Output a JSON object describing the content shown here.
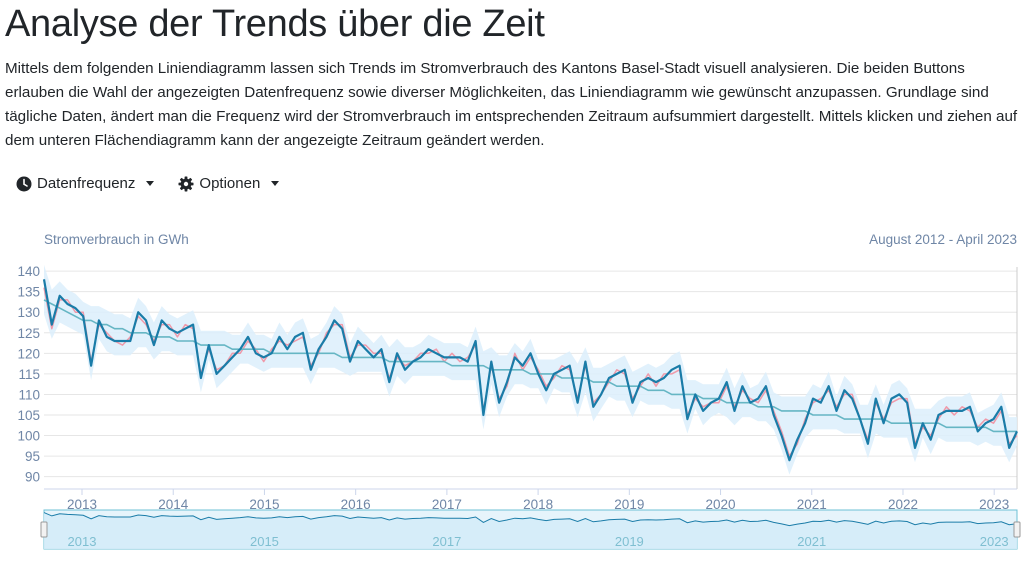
{
  "page": {
    "title": "Analyse der Trends über die Zeit",
    "intro": "Mittels dem folgenden Liniendiagramm lassen sich Trends im Stromverbrauch des Kantons Basel-Stadt visuell analysieren. Die beiden Buttons erlauben die Wahl der angezeigten Datenfrequenz sowie diverser Möglichkeiten, das Liniendiagramm wie gewünscht anzupassen. Grundlage sind tägliche Daten, ändert man die Frequenz wird der Stromverbrauch im entsprechenden Zeitraum aufsummiert dargestellt. Mittels klicken und ziehen auf dem unteren Flächendiagramm kann der angezeigte Zeitraum geändert werden."
  },
  "toolbar": {
    "frequency_label": "Datenfrequenz",
    "frequency_icon": "clock-icon",
    "options_label": "Optionen",
    "options_icon": "gear-icon"
  },
  "chart_data": {
    "type": "line",
    "title": "",
    "ylabel": "Stromverbrauch in GWh",
    "range_label": "August 2012 - April 2023",
    "ylim": [
      87,
      141
    ],
    "yticks": [
      90,
      95,
      100,
      105,
      110,
      115,
      120,
      125,
      130,
      135,
      140
    ],
    "xticks": [
      "2013",
      "2014",
      "2015",
      "2016",
      "2017",
      "2018",
      "2019",
      "2020",
      "2021",
      "2022",
      "2023"
    ],
    "navigator_ticks": [
      "2013",
      "2015",
      "2017",
      "2019",
      "2021",
      "2023"
    ],
    "grid": true,
    "legend": "none",
    "x_start": "2012-08",
    "x_end": "2023-04",
    "x_step": "month",
    "series": [
      {
        "values": [
          138,
          127,
          134,
          132,
          131,
          129,
          117,
          128,
          124,
          123,
          123,
          123,
          130,
          128,
          122,
          128,
          126,
          125,
          126,
          127,
          114,
          122,
          115,
          117,
          119,
          121,
          124,
          120,
          119,
          120,
          124,
          121,
          124,
          125,
          116,
          121,
          124,
          128,
          126,
          118,
          123,
          121,
          119,
          121,
          113,
          120,
          116,
          118,
          119,
          121,
          120,
          119,
          119,
          119,
          118,
          123,
          105,
          118,
          108,
          113,
          119,
          117,
          120,
          115,
          111,
          115,
          116,
          117,
          108,
          118,
          107,
          110,
          114,
          115,
          116,
          108,
          113,
          114,
          113,
          114,
          116,
          117,
          104,
          110,
          106,
          108,
          109,
          113,
          106,
          112,
          108,
          109,
          112,
          105,
          100,
          94,
          99,
          103,
          109,
          108,
          112,
          106,
          111,
          109,
          104,
          98,
          109,
          103,
          109,
          110,
          108,
          97,
          103,
          99,
          105,
          106,
          106,
          106,
          107,
          101,
          103,
          104,
          107,
          97,
          101
        ],
        "color": "#1a7ca8"
      },
      {
        "values": [
          136,
          126,
          133,
          133,
          130,
          130,
          118,
          127,
          125,
          123,
          122,
          124,
          129,
          127,
          123,
          127,
          127,
          124,
          127,
          126,
          115,
          121,
          116,
          117,
          120,
          120,
          123,
          121,
          118,
          121,
          123,
          122,
          123,
          124,
          117,
          120,
          125,
          127,
          127,
          119,
          122,
          122,
          120,
          120,
          114,
          119,
          117,
          118,
          120,
          120,
          121,
          118,
          120,
          118,
          119,
          122,
          106,
          117,
          109,
          112,
          120,
          116,
          119,
          116,
          112,
          114,
          117,
          116,
          109,
          117,
          108,
          110,
          113,
          116,
          115,
          109,
          112,
          115,
          112,
          115,
          115,
          116,
          105,
          109,
          107,
          108,
          108,
          112,
          107,
          111,
          109,
          108,
          111,
          106,
          101,
          95,
          98,
          104,
          108,
          109,
          111,
          107,
          110,
          110,
          104,
          99,
          108,
          104,
          108,
          109,
          109,
          98,
          102,
          100,
          104,
          107,
          105,
          107,
          106,
          102,
          104,
          103,
          106,
          98,
          100
        ],
        "color": "#ef9aaa"
      },
      {
        "values": [
          133,
          132,
          131,
          130,
          129,
          128,
          128,
          127,
          127,
          126,
          126,
          125,
          125,
          125,
          124,
          124,
          124,
          123,
          123,
          123,
          122,
          122,
          122,
          122,
          121,
          121,
          121,
          121,
          121,
          120,
          120,
          120,
          120,
          120,
          120,
          120,
          120,
          120,
          119,
          119,
          119,
          119,
          119,
          119,
          118,
          118,
          118,
          118,
          118,
          118,
          118,
          118,
          117,
          117,
          117,
          117,
          117,
          116,
          116,
          116,
          116,
          116,
          115,
          115,
          115,
          115,
          114,
          114,
          114,
          114,
          113,
          113,
          113,
          112,
          112,
          112,
          112,
          111,
          111,
          111,
          110,
          110,
          110,
          110,
          109,
          109,
          109,
          108,
          108,
          108,
          108,
          107,
          107,
          107,
          106,
          106,
          106,
          106,
          105,
          105,
          105,
          105,
          104,
          104,
          104,
          104,
          104,
          104,
          103,
          103,
          103,
          103,
          103,
          103,
          103,
          102,
          102,
          102,
          102,
          102,
          102,
          101,
          101,
          101,
          101
        ],
        "color": "#66b6c4"
      }
    ]
  }
}
